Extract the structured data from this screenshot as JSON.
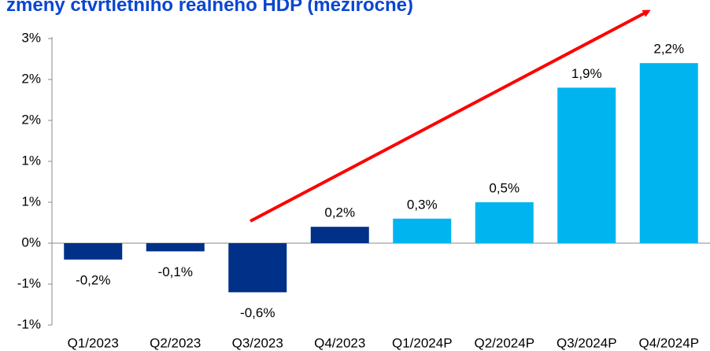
{
  "chart_data": {
    "type": "bar",
    "title": "změny čtvrtletního reálného HDP (meziročně)",
    "categories": [
      "Q1/2023",
      "Q2/2023",
      "Q3/2023",
      "Q4/2023",
      "Q1/2024P",
      "Q2/2024P",
      "Q3/2024P",
      "Q4/2024P"
    ],
    "values": [
      -0.2,
      -0.1,
      -0.6,
      0.2,
      0.3,
      0.5,
      1.9,
      2.2
    ],
    "value_labels": [
      "-0,2%",
      "-0,1%",
      "-0,6%",
      "0,2%",
      "0,3%",
      "0,5%",
      "1,9%",
      "2,2%"
    ],
    "colors": [
      "#003087",
      "#003087",
      "#003087",
      "#003087",
      "#00b4f0",
      "#00b4f0",
      "#00b4f0",
      "#00b4f0"
    ],
    "ylim": [
      -1.0,
      2.5
    ],
    "yticks": [
      {
        "value": -1.0,
        "label": "-1%"
      },
      {
        "value": -0.5,
        "label": "-1%"
      },
      {
        "value": 0,
        "label": "0%"
      },
      {
        "value": 0.5,
        "label": "1%"
      },
      {
        "value": 1.0,
        "label": "1%"
      },
      {
        "value": 1.5,
        "label": "2%"
      },
      {
        "value": 2.0,
        "label": "2%"
      },
      {
        "value": 2.5,
        "label": "3%"
      }
    ],
    "grid": false
  }
}
